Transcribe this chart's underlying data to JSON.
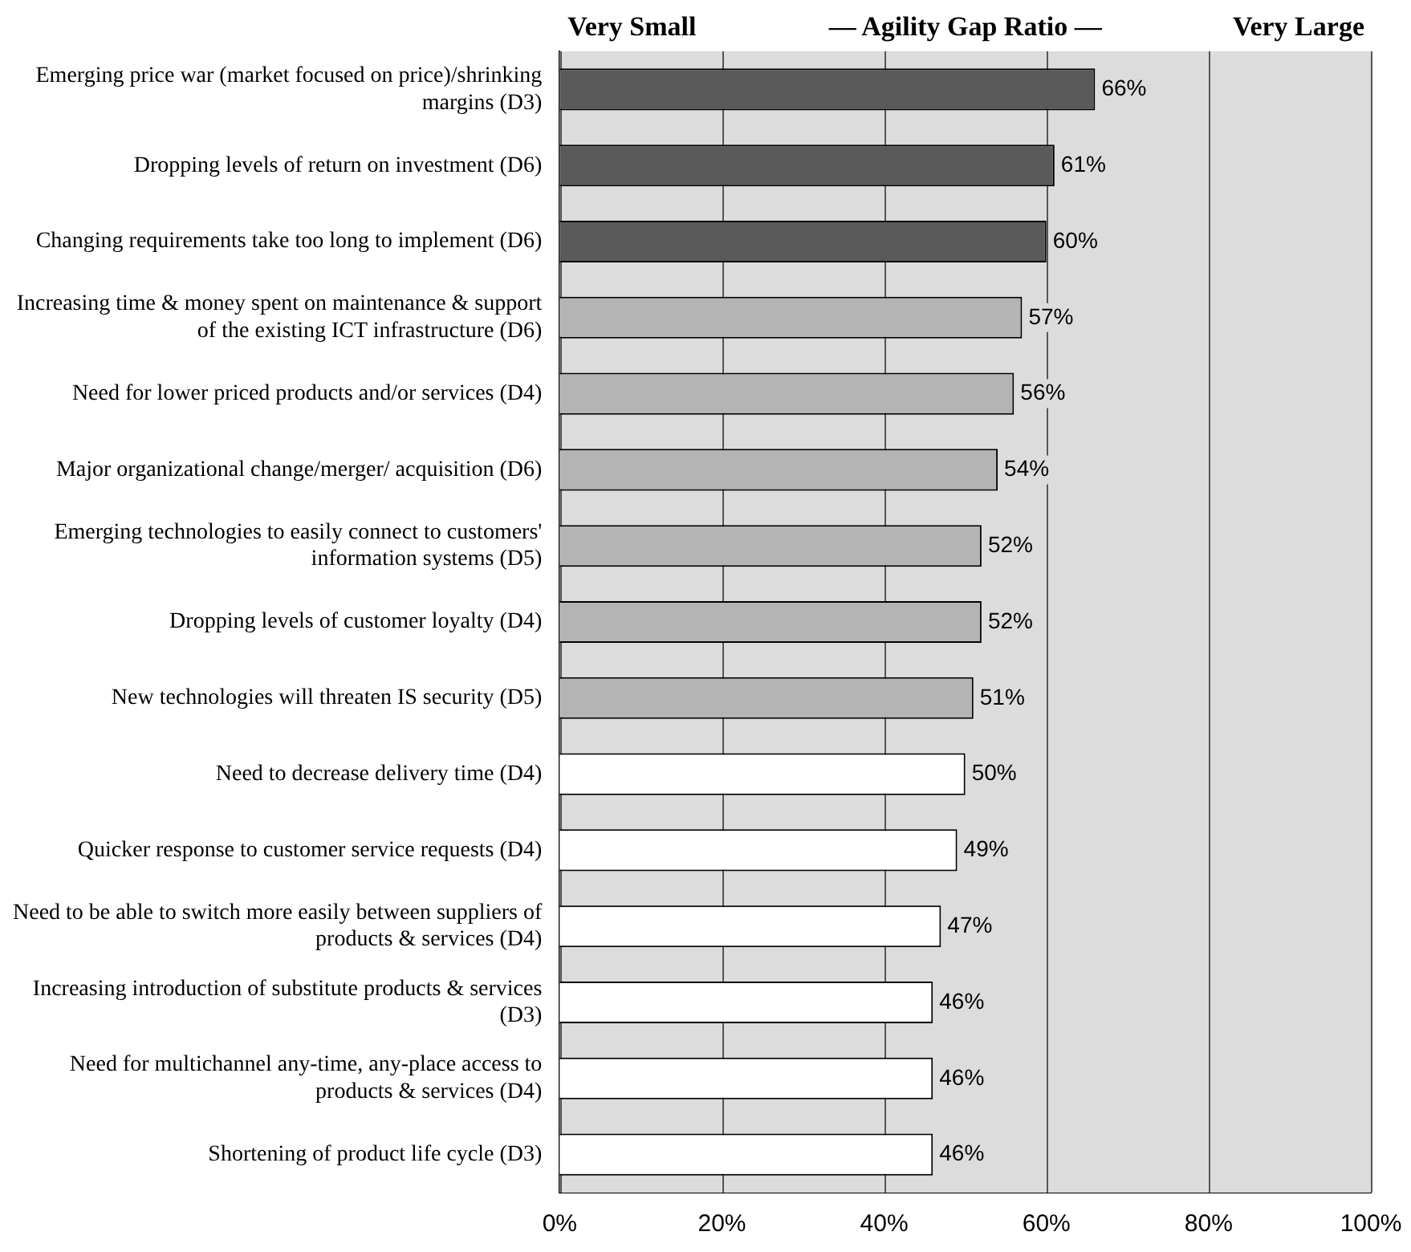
{
  "chart_data": {
    "type": "bar",
    "orientation": "horizontal",
    "categories": [
      "Emerging price war (market focused on price)/shrinking margins (D3)",
      "Dropping levels of return on investment (D6)",
      "Changing requirements take too long to implement (D6)",
      "Increasing time & money spent on maintenance & support of the existing ICT infrastructure (D6)",
      "Need for lower priced products and/or services (D4)",
      "Major organizational change/merger/ acquisition (D6)",
      "Emerging technologies to easily connect to customers' information systems (D5)",
      "Dropping levels of customer loyalty (D4)",
      "New technologies will threaten IS security (D5)",
      "Need to decrease delivery time (D4)",
      "Quicker response to customer service requests (D4)",
      "Need to be able to switch more easily between suppliers of products & services (D4)",
      "Increasing introduction of substitute products & services (D3)",
      "Need for multichannel any-time, any-place access to products & services (D4)",
      "Shortening of product life cycle (D3)"
    ],
    "values": [
      66,
      61,
      60,
      57,
      56,
      54,
      52,
      52,
      51,
      50,
      49,
      47,
      46,
      46,
      46
    ],
    "value_labels": [
      "66%",
      "61%",
      "60%",
      "57%",
      "56%",
      "54%",
      "52%",
      "52%",
      "51%",
      "50%",
      "49%",
      "47%",
      "46%",
      "46%",
      "46%"
    ],
    "colors": [
      "#5a5a5a",
      "#5a5a5a",
      "#5a5a5a",
      "#b4b4b4",
      "#b4b4b4",
      "#b4b4b4",
      "#b4b4b4",
      "#b4b4b4",
      "#b4b4b4",
      "#ffffff",
      "#ffffff",
      "#ffffff",
      "#ffffff",
      "#ffffff",
      "#ffffff"
    ],
    "xlim": [
      0,
      100
    ],
    "xticks": [
      {
        "value": 0,
        "label": "0%"
      },
      {
        "value": 20,
        "label": "20%"
      },
      {
        "value": 40,
        "label": "40%"
      },
      {
        "value": 60,
        "label": "60%"
      },
      {
        "value": 80,
        "label": "80%"
      },
      {
        "value": 100,
        "label": "100%"
      }
    ],
    "bands": [
      {
        "axis": "x",
        "from": 0,
        "to": 100,
        "color": "#dcdcdc"
      }
    ],
    "annotations": [
      "Very Small",
      "— Agility Gap Ratio —",
      "Very Large"
    ],
    "grid": "x",
    "legend": false
  }
}
